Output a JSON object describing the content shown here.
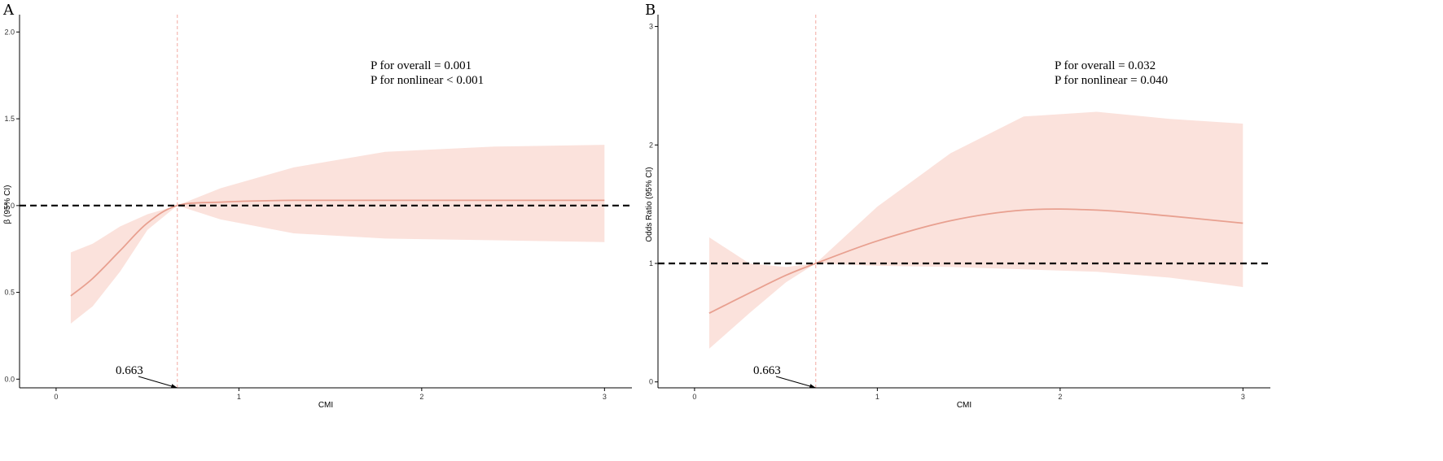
{
  "chart_data": [
    {
      "panel": "A",
      "type": "line",
      "xlabel": "CMI",
      "ylabel": "β (95% CI)",
      "xlim": [
        -0.2,
        3.15
      ],
      "ylim": [
        -0.05,
        2.1
      ],
      "xticks": [
        0,
        1,
        2,
        3
      ],
      "yticks": [
        "0.0",
        "0.5",
        "1.0",
        "1.5",
        "2.0"
      ],
      "ytick_values": [
        0,
        0.5,
        1.0,
        1.5,
        2.0
      ],
      "reference_line": 1.0,
      "cutpoint": 0.663,
      "cutpoint_label": "0.663",
      "annotations": [
        "P for overall = 0.001",
        "P for nonlinear < 0.001"
      ],
      "x": [
        0.08,
        0.2,
        0.35,
        0.5,
        0.663,
        0.9,
        1.3,
        1.8,
        2.4,
        3.0
      ],
      "y": [
        0.48,
        0.58,
        0.74,
        0.9,
        1.0,
        1.02,
        1.03,
        1.03,
        1.03,
        1.03
      ],
      "lower": [
        0.32,
        0.42,
        0.62,
        0.86,
        1.0,
        0.92,
        0.84,
        0.81,
        0.8,
        0.79
      ],
      "upper": [
        0.73,
        0.78,
        0.88,
        0.95,
        1.0,
        1.1,
        1.22,
        1.31,
        1.34,
        1.35
      ],
      "colors": {
        "line": "#e8a090",
        "band": "#fbe2dc",
        "ref": "#000000",
        "vline": "#f4b8b0"
      }
    },
    {
      "panel": "B",
      "type": "line",
      "xlabel": "CMI",
      "ylabel": "Odds Ratio (95% CI)",
      "xlim": [
        -0.2,
        3.15
      ],
      "ylim": [
        -0.05,
        3.1
      ],
      "xticks": [
        0,
        1,
        2,
        3
      ],
      "yticks": [
        "0",
        "1",
        "2",
        "3"
      ],
      "ytick_values": [
        0,
        1,
        2,
        3
      ],
      "reference_line": 1.0,
      "cutpoint": 0.663,
      "cutpoint_label": "0.663",
      "annotations": [
        "P for overall = 0.032",
        "P for nonlinear = 0.040"
      ],
      "x": [
        0.08,
        0.3,
        0.5,
        0.663,
        1.0,
        1.4,
        1.8,
        2.2,
        2.6,
        3.0
      ],
      "y": [
        0.58,
        0.75,
        0.9,
        1.0,
        1.19,
        1.36,
        1.45,
        1.45,
        1.4,
        1.34
      ],
      "lower": [
        0.28,
        0.58,
        0.84,
        1.0,
        0.98,
        0.97,
        0.95,
        0.93,
        0.88,
        0.8
      ],
      "upper": [
        1.22,
        1.0,
        0.97,
        1.0,
        1.48,
        1.93,
        2.24,
        2.28,
        2.22,
        2.18
      ],
      "colors": {
        "line": "#e8a090",
        "band": "#fbe2dc",
        "ref": "#000000",
        "vline": "#f4b8b0"
      }
    }
  ]
}
